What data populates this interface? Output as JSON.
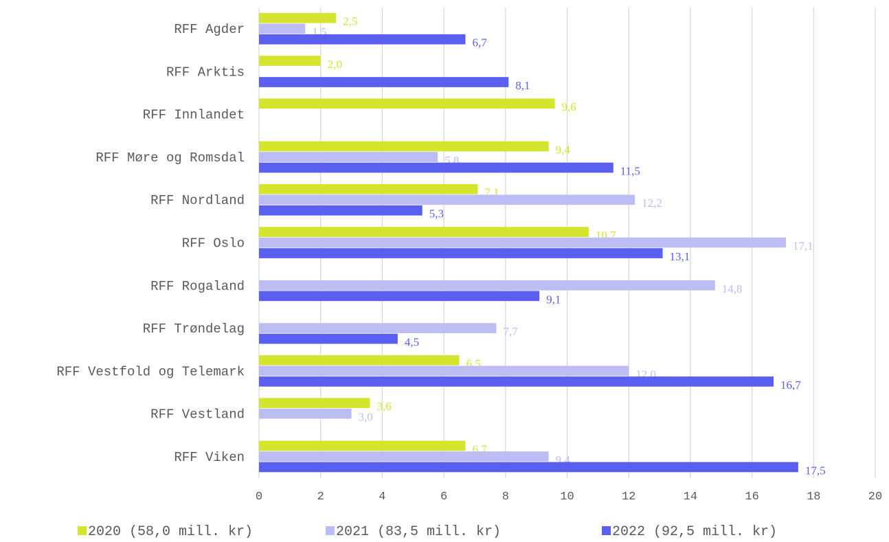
{
  "chart_data": {
    "type": "bar",
    "orientation": "horizontal",
    "categories": [
      "RFF Agder",
      "RFF Arktis",
      "RFF Innlandet",
      "RFF Møre og Romsdal",
      "RFF Nordland",
      "RFF Oslo",
      "RFF Rogaland",
      "RFF Trøndelag",
      "RFF Vestfold og Telemark",
      "RFF Vestland",
      "RFF Viken"
    ],
    "series": [
      {
        "name": "2020 (58,0 mill. kr)",
        "color": "#d5e52e",
        "values": [
          2.5,
          2.0,
          9.6,
          9.4,
          7.1,
          10.7,
          null,
          null,
          6.5,
          3.6,
          6.7
        ],
        "value_labels": [
          "2,5",
          "2,0",
          "9,6",
          "9,4",
          "7,1",
          "10,7",
          null,
          null,
          "6,5",
          "3,6",
          "6,7"
        ]
      },
      {
        "name": "2021 (83,5 mill. kr)",
        "color": "#bdbdf6",
        "values": [
          1.5,
          null,
          null,
          5.8,
          12.2,
          17.1,
          14.8,
          7.7,
          12.0,
          3.0,
          9.4
        ],
        "value_labels": [
          "1,5",
          null,
          null,
          "5,8",
          "12,2",
          "17,1",
          "14,8",
          "7,7",
          "12,0",
          "3,0",
          "9,4"
        ]
      },
      {
        "name": "2022 (92,5 mill. kr)",
        "color": "#5b5ff0",
        "values": [
          6.7,
          8.1,
          null,
          11.5,
          5.3,
          13.1,
          9.1,
          4.5,
          16.7,
          null,
          17.5
        ],
        "value_labels": [
          "6,7",
          "8,1",
          null,
          "11,5",
          "5,3",
          "13,1",
          "9,1",
          "4,5",
          "16,7",
          null,
          "17,5"
        ]
      }
    ],
    "xlim": [
      0,
      20
    ],
    "xticks": [
      0,
      2,
      4,
      6,
      8,
      10,
      12,
      14,
      16,
      18,
      20
    ],
    "grid": true,
    "legend": "bottom"
  }
}
